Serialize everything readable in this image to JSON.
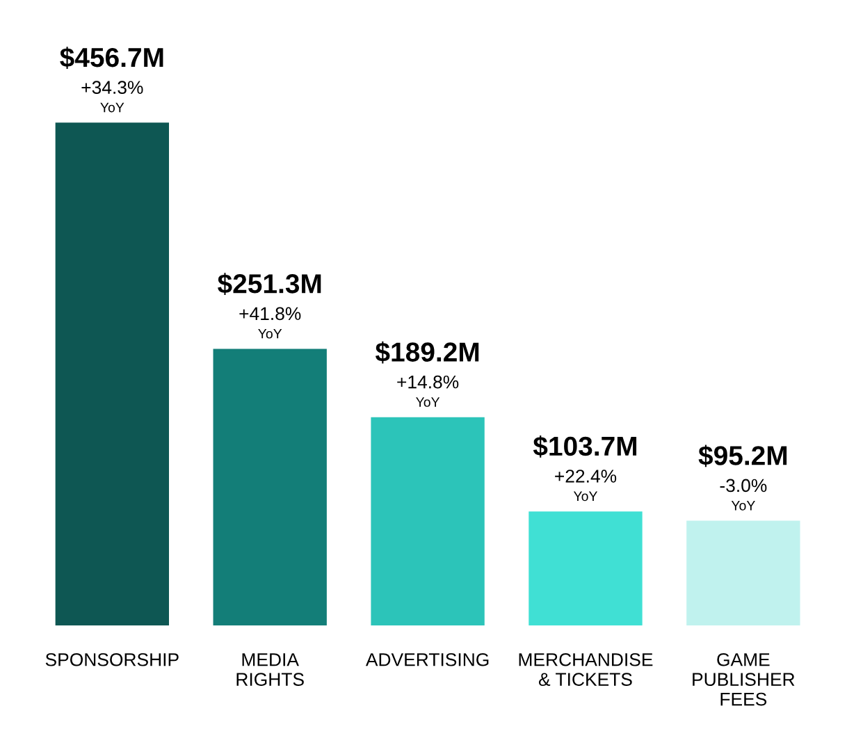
{
  "chart_data": {
    "type": "bar",
    "categories": [
      "SPONSORSHIP",
      "MEDIA\nRIGHTS",
      "ADVERTISING",
      "MERCHANDISE\n& TICKETS",
      "GAME\nPUBLISHER\nFEES"
    ],
    "values": [
      456.7,
      251.3,
      189.2,
      103.7,
      95.2
    ],
    "colors": [
      "#0e5753",
      "#137e78",
      "#2cc4b9",
      "#40e0d4",
      "#c0f2ee"
    ],
    "value_labels": [
      "$456.7M",
      "$251.3M",
      "$189.2M",
      "$103.7M",
      "$95.2M"
    ],
    "annotations": [
      {
        "text": "+34.3%",
        "x": "SPONSORSHIP",
        "y": 456.7
      },
      {
        "text": "YoY",
        "x": "SPONSORSHIP",
        "y": 456.7
      },
      {
        "text": "+41.8%",
        "x": "MEDIA\nRIGHTS",
        "y": 251.3
      },
      {
        "text": "YoY",
        "x": "MEDIA\nRIGHTS",
        "y": 251.3
      },
      {
        "text": "+14.8%",
        "x": "ADVERTISING",
        "y": 189.2
      },
      {
        "text": "YoY",
        "x": "ADVERTISING",
        "y": 189.2
      },
      {
        "text": "+22.4%",
        "x": "MERCHANDISE\n& TICKETS",
        "y": 103.7
      },
      {
        "text": "YoY",
        "x": "MERCHANDISE\n& TICKETS",
        "y": 103.7
      },
      {
        "text": "-3.0%",
        "x": "GAME\nPUBLISHER\nFEES",
        "y": 95.2
      },
      {
        "text": "YoY",
        "x": "GAME\nPUBLISHER\nFEES",
        "y": 95.2
      }
    ],
    "grid": false,
    "legend": false
  }
}
